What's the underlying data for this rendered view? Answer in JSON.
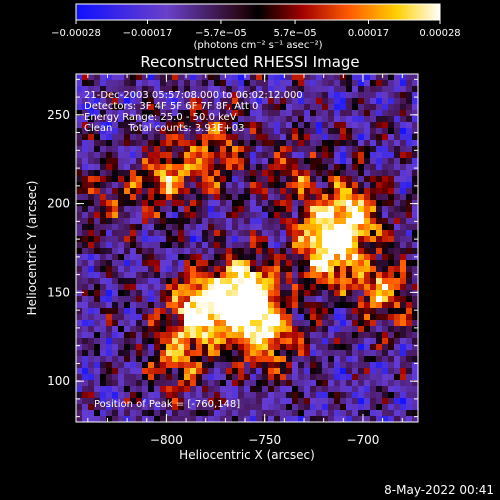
{
  "chart_data": {
    "type": "heatmap",
    "title": "Reconstructed RHESSI Image",
    "xlabel": "Heliocentric X (arcsec)",
    "ylabel": "Heliocentric Y (arcsec)",
    "xlim": [
      -846,
      -672
    ],
    "ylim": [
      77,
      273
    ],
    "xticks": [
      -800,
      -750,
      -700
    ],
    "xtick_labels": [
      "−800",
      "−750",
      "−700"
    ],
    "yticks": [
      100,
      150,
      200,
      250
    ],
    "ytick_labels": [
      "100",
      "150",
      "200",
      "250"
    ],
    "colorbar": {
      "ticks": [
        -0.00028,
        -0.00017,
        -5.7e-05,
        5.7e-05,
        0.00017,
        0.00028
      ],
      "tick_labels": [
        "−0.00028",
        "−0.00017",
        "−5.7e−05",
        "5.7e−05",
        "0.00017",
        "0.00028"
      ],
      "unit_label": "(photons cm⁻² s⁻¹ asec⁻²)",
      "colors": [
        "#1010ff",
        "#7040c0",
        "#3a0820",
        "#000000",
        "#b00000",
        "#ff6a00",
        "#ffd000",
        "#ffffff"
      ]
    },
    "annotations": [
      "21-Dec-2003 05:57:08.000 to 06:02:12.000",
      "Detectors: 3F 4F 5F 6F 7F 8F, Att 0",
      "Energy Range: 25.0 - 50.0 keV",
      "Clean     Total counts: 3.93E+03"
    ],
    "peak_label": "Position of Peak = [-760,148]",
    "peak": [
      -760,
      148
    ],
    "hotspots": [
      {
        "x": -760,
        "y": 148,
        "amp": 1.0
      },
      {
        "x": -783,
        "y": 140,
        "amp": 0.8
      },
      {
        "x": -748,
        "y": 125,
        "amp": 0.6
      },
      {
        "x": -718,
        "y": 175,
        "amp": 0.85
      },
      {
        "x": -705,
        "y": 195,
        "amp": 0.65
      },
      {
        "x": -690,
        "y": 150,
        "amp": 0.55
      },
      {
        "x": -800,
        "y": 215,
        "amp": 0.5
      },
      {
        "x": -775,
        "y": 230,
        "amp": 0.45
      },
      {
        "x": -735,
        "y": 215,
        "amp": 0.35
      },
      {
        "x": -795,
        "y": 110,
        "amp": 0.4
      },
      {
        "x": -830,
        "y": 200,
        "amp": 0.3
      }
    ]
  },
  "footer": {
    "date": "8-May-2022 00:41"
  }
}
